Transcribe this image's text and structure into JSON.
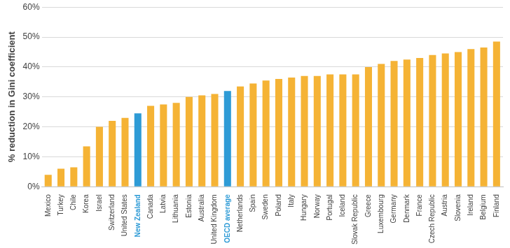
{
  "chart_data": {
    "type": "bar",
    "y_label": "% reduction in Gini coefficient",
    "categories": [
      "Mexico",
      "Turkey",
      "Chile",
      "Korea",
      "Israel",
      "Switzerland",
      "United States",
      "New Zealand",
      "Canada",
      "Latvia",
      "Lithuania",
      "Estonia",
      "Australia",
      "United Kingdom",
      "OECD average",
      "Netherlands",
      "Spain",
      "Sweden",
      "Poland",
      "Italy",
      "Hungary",
      "Norway",
      "Portugal",
      "Iceland",
      "Slovak Republic",
      "Greece",
      "Luxembourg",
      "Germany",
      "Denmark",
      "France",
      "Czech Republic",
      "Austria",
      "Slovenia",
      "Ireland",
      "Belgium",
      "Finland"
    ],
    "values": [
      4,
      6,
      6.5,
      13.5,
      20,
      22,
      23,
      24.5,
      27,
      27.5,
      28,
      30,
      30.5,
      31,
      32,
      33.5,
      34.5,
      35.5,
      36,
      36.5,
      37,
      37,
      37.5,
      37.5,
      37.5,
      40,
      41,
      42,
      42.5,
      43,
      44,
      44.5,
      45,
      46,
      46.5,
      48.5
    ],
    "colors": [
      "#f5b335",
      "#f5b335",
      "#f5b335",
      "#f5b335",
      "#f5b335",
      "#f5b335",
      "#f5b335",
      "#2e9bd6",
      "#f5b335",
      "#f5b335",
      "#f5b335",
      "#f5b335",
      "#f5b335",
      "#f5b335",
      "#2e9bd6",
      "#f5b335",
      "#f5b335",
      "#f5b335",
      "#f5b335",
      "#f5b335",
      "#f5b335",
      "#f5b335",
      "#f5b335",
      "#f5b335",
      "#f5b335",
      "#f5b335",
      "#f5b335",
      "#f5b335",
      "#f5b335",
      "#f5b335",
      "#f5b335",
      "#f5b335",
      "#f5b335",
      "#f5b335",
      "#f5b335",
      "#f5b335"
    ],
    "ylim": [
      0,
      60
    ],
    "yticks": [
      {
        "value": 0,
        "label": "0%"
      },
      {
        "value": 10,
        "label": "10%"
      },
      {
        "value": 20,
        "label": "20%"
      },
      {
        "value": 30,
        "label": "30%"
      },
      {
        "value": 40,
        "label": "40%"
      },
      {
        "value": 50,
        "label": "50%"
      },
      {
        "value": 60,
        "label": "60%"
      }
    ],
    "grid": true
  }
}
